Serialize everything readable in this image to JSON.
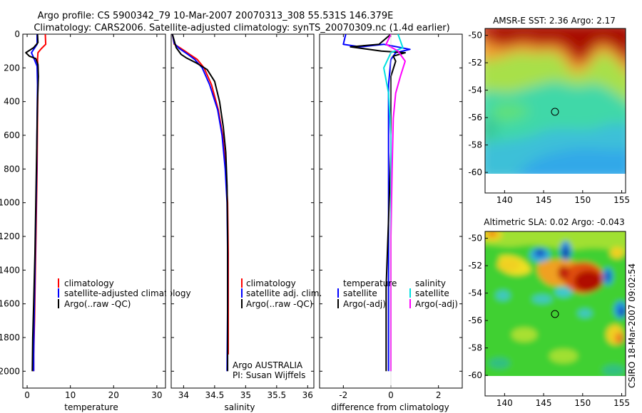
{
  "figure": {
    "title_line1": "Argo profile: CS 5900342_79 10-Mar-2007 20070313_308 55.531S 146.379E",
    "title_line2": "Climatology: CARS2006. Satellite-adjusted climatology: synTS_20070309.nc (1.4d earlier)",
    "side_label": "CSIRO 18-Mar-2007 09:02:54",
    "argo_note_1": "Argo AUSTRALIA",
    "argo_note_2": "PI: Susan Wijffels"
  },
  "colors": {
    "climatology": "#ff0000",
    "satellite": "#0000ff",
    "argo": "#000000",
    "sal_satellite": "#00e0e0",
    "sal_argo": "#ff00ff"
  },
  "chart_data": [
    {
      "id": "temperature",
      "type": "line",
      "xlabel": "temperature",
      "ylabel": "",
      "xlim": [
        -1,
        32
      ],
      "ylim": [
        2100,
        0
      ],
      "xticks": [
        0,
        10,
        20,
        30
      ],
      "yticks": [
        0,
        200,
        400,
        600,
        800,
        1000,
        1200,
        1400,
        1600,
        1800,
        2000
      ],
      "legend": [
        "climatology",
        "satellite-adjusted climatology",
        "Argo(..raw -QC)"
      ],
      "series": [
        {
          "name": "climatology",
          "color": "#ff0000",
          "points": [
            [
              4.2,
              0
            ],
            [
              4.3,
              60
            ],
            [
              3.3,
              85
            ],
            [
              2.5,
              110
            ],
            [
              2.4,
              150
            ],
            [
              2.5,
              200
            ],
            [
              2.5,
              300
            ],
            [
              2.4,
              500
            ],
            [
              2.3,
              800
            ],
            [
              2.1,
              1100
            ],
            [
              1.9,
              1400
            ],
            [
              1.7,
              1700
            ],
            [
              1.5,
              1900
            ],
            [
              1.5,
              2000
            ]
          ]
        },
        {
          "name": "satellite-adjusted climatology",
          "color": "#0000ff",
          "points": [
            [
              2.3,
              0
            ],
            [
              2.3,
              60
            ],
            [
              1.0,
              110
            ],
            [
              1.5,
              140
            ],
            [
              2.3,
              190
            ],
            [
              2.4,
              300
            ],
            [
              2.3,
              500
            ],
            [
              2.2,
              800
            ],
            [
              2.0,
              1100
            ],
            [
              1.8,
              1400
            ],
            [
              1.6,
              1700
            ],
            [
              1.5,
              1900
            ],
            [
              1.5,
              2000
            ]
          ]
        },
        {
          "name": "Argo(..raw -QC)",
          "color": "#000000",
          "points": [
            [
              2.4,
              0
            ],
            [
              2.5,
              50
            ],
            [
              1.5,
              80
            ],
            [
              -0.3,
              110
            ],
            [
              0.5,
              130
            ],
            [
              2.0,
              145
            ],
            [
              2.5,
              180
            ],
            [
              2.6,
              250
            ],
            [
              2.4,
              400
            ],
            [
              2.2,
              700
            ],
            [
              2.0,
              1000
            ],
            [
              1.8,
              1300
            ],
            [
              1.5,
              1600
            ],
            [
              1.3,
              1800
            ],
            [
              1.2,
              2000
            ]
          ]
        }
      ]
    },
    {
      "id": "salinity",
      "type": "line",
      "xlabel": "salinity",
      "ylabel": "",
      "xlim": [
        33.8,
        36.1
      ],
      "ylim": [
        2100,
        0
      ],
      "xticks": [
        34,
        34.5,
        35,
        35.5,
        36
      ],
      "xticklabels": [
        "34",
        "34.5",
        "35",
        "35.5",
        "36"
      ],
      "legend": [
        "climatology",
        "satellite adj. clim.",
        "Argo(..raw -QC)"
      ],
      "series": [
        {
          "name": "climatology",
          "color": "#ff0000",
          "points": [
            [
              33.82,
              0
            ],
            [
              33.85,
              60
            ],
            [
              33.98,
              90
            ],
            [
              34.1,
              120
            ],
            [
              34.22,
              150
            ],
            [
              34.33,
              200
            ],
            [
              34.45,
              300
            ],
            [
              34.56,
              450
            ],
            [
              34.63,
              600
            ],
            [
              34.68,
              800
            ],
            [
              34.71,
              1000
            ],
            [
              34.72,
              1300
            ],
            [
              34.72,
              1600
            ],
            [
              34.72,
              1900
            ]
          ]
        },
        {
          "name": "satellite adj. clim.",
          "color": "#0000ff",
          "points": [
            [
              33.82,
              0
            ],
            [
              33.85,
              55
            ],
            [
              33.93,
              85
            ],
            [
              34.05,
              115
            ],
            [
              34.18,
              150
            ],
            [
              34.3,
              200
            ],
            [
              34.42,
              300
            ],
            [
              34.55,
              450
            ],
            [
              34.62,
              600
            ],
            [
              34.67,
              800
            ],
            [
              34.7,
              1000
            ],
            [
              34.71,
              1300
            ],
            [
              34.71,
              1600
            ],
            [
              34.7,
              2000
            ]
          ]
        },
        {
          "name": "Argo(..raw -QC)",
          "color": "#000000",
          "points": [
            [
              33.82,
              0
            ],
            [
              33.88,
              80
            ],
            [
              33.96,
              120
            ],
            [
              34.04,
              140
            ],
            [
              34.2,
              170
            ],
            [
              34.38,
              210
            ],
            [
              34.5,
              280
            ],
            [
              34.58,
              400
            ],
            [
              34.64,
              550
            ],
            [
              34.68,
              700
            ],
            [
              34.7,
              900
            ],
            [
              34.71,
              1200
            ],
            [
              34.71,
              1500
            ],
            [
              34.71,
              1800
            ],
            [
              34.71,
              2000
            ]
          ]
        }
      ]
    },
    {
      "id": "difference",
      "type": "line",
      "xlabel": "difference from climatology",
      "ylabel": "",
      "xlim": [
        -3,
        3
      ],
      "ylim": [
        2100,
        0
      ],
      "xticks": [
        -2,
        0,
        2
      ],
      "legend_left_title": "temperature",
      "legend_right_title": "salinity",
      "legend_left": [
        "satellite",
        "Argo(-adj)"
      ],
      "legend_right": [
        "satellite",
        "Argo(-adj)"
      ],
      "series": [
        {
          "name": "temperature satellite",
          "color": "#0000ff",
          "points": [
            [
              -1.9,
              0
            ],
            [
              -2.0,
              60
            ],
            [
              -1.3,
              75
            ],
            [
              -0.3,
              60
            ],
            [
              0.8,
              90
            ],
            [
              0.2,
              110
            ],
            [
              0.0,
              150
            ],
            [
              -0.1,
              300
            ],
            [
              -0.1,
              600
            ],
            [
              -0.1,
              1000
            ],
            [
              -0.1,
              1400
            ],
            [
              -0.1,
              2000
            ]
          ]
        },
        {
          "name": "temperature Argo(-adj)",
          "color": "#000000",
          "points": [
            [
              0.0,
              0
            ],
            [
              -0.5,
              60
            ],
            [
              -1.7,
              75
            ],
            [
              -0.4,
              100
            ],
            [
              0.6,
              110
            ],
            [
              0.1,
              130
            ],
            [
              0.2,
              160
            ],
            [
              0.0,
              250
            ],
            [
              0.0,
              700
            ],
            [
              -0.1,
              1100
            ],
            [
              -0.2,
              1500
            ],
            [
              -0.2,
              1800
            ],
            [
              -0.2,
              2000
            ]
          ]
        },
        {
          "name": "salinity satellite",
          "color": "#00e0e0",
          "points": [
            [
              0.3,
              0
            ],
            [
              0.5,
              80
            ],
            [
              0.0,
              110
            ],
            [
              -0.3,
              200
            ],
            [
              -0.1,
              350
            ],
            [
              0.0,
              600
            ],
            [
              0.0,
              900
            ],
            [
              0.0,
              1300
            ],
            [
              0.0,
              1700
            ],
            [
              0.0,
              2000
            ]
          ]
        },
        {
          "name": "salinity Argo(-adj)",
          "color": "#ff00ff",
          "points": [
            [
              0.0,
              0
            ],
            [
              -0.2,
              60
            ],
            [
              0.3,
              100
            ],
            [
              0.6,
              160
            ],
            [
              0.4,
              250
            ],
            [
              0.2,
              350
            ],
            [
              0.1,
              500
            ],
            [
              0.05,
              800
            ],
            [
              0.0,
              1200
            ],
            [
              0.0,
              1600
            ],
            [
              0.0,
              2000
            ]
          ]
        }
      ]
    },
    {
      "id": "sst_map",
      "type": "heatmap",
      "title": "AMSR-E SST: 2.36 Argo: 2.17",
      "xlim": [
        137.5,
        155.5
      ],
      "ylim": [
        -61.5,
        -49.5
      ],
      "data_ylim": [
        -60,
        -49.5
      ],
      "xticks": [
        140,
        145,
        150,
        155
      ],
      "yticks": [
        -50,
        -52,
        -54,
        -56,
        -58,
        -60
      ],
      "marker": [
        146.4,
        -55.5
      ]
    },
    {
      "id": "sla_map",
      "type": "heatmap",
      "title": "Altimetric SLA: 0.02 Argo: -0.043",
      "xlim": [
        137.5,
        155.5
      ],
      "ylim": [
        -61.5,
        -49.5
      ],
      "data_ylim": [
        -60,
        -49.5
      ],
      "xticks": [
        140,
        145,
        150,
        155
      ],
      "yticks": [
        -50,
        -52,
        -54,
        -56,
        -58,
        -60
      ],
      "marker": [
        146.4,
        -55.5
      ]
    }
  ]
}
